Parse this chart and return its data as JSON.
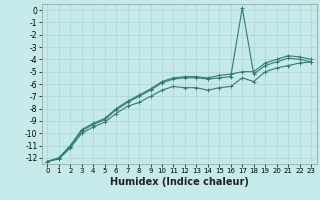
{
  "xlabel": "Humidex (Indice chaleur)",
  "ylabel": "",
  "bg_color": "#c6e9e9",
  "grid_color": "#b0d4d4",
  "line_color": "#2e7d6e",
  "x_values": [
    0,
    1,
    2,
    3,
    4,
    5,
    6,
    7,
    8,
    9,
    10,
    11,
    12,
    13,
    14,
    15,
    16,
    17,
    18,
    19,
    20,
    21,
    22,
    23
  ],
  "line1": [
    -12.3,
    -12.1,
    -11.2,
    -10.0,
    -9.5,
    -9.1,
    -8.4,
    -7.8,
    -7.5,
    -7.0,
    -6.5,
    -6.2,
    -6.3,
    -6.3,
    -6.5,
    -6.3,
    -6.2,
    -5.5,
    -5.8,
    -5.0,
    -4.7,
    -4.5,
    -4.3,
    -4.2
  ],
  "line2": [
    -12.3,
    -12.0,
    -11.1,
    -9.8,
    -9.3,
    -8.9,
    -8.1,
    -7.5,
    -7.0,
    -6.5,
    -5.9,
    -5.6,
    -5.5,
    -5.5,
    -5.6,
    -5.5,
    -5.4,
    0.2,
    -5.2,
    -4.5,
    -4.2,
    -3.9,
    -4.0,
    -4.2
  ],
  "line3": [
    -12.3,
    -12.0,
    -11.0,
    -9.7,
    -9.2,
    -8.8,
    -8.0,
    -7.4,
    -6.9,
    -6.4,
    -5.8,
    -5.5,
    -5.4,
    -5.4,
    -5.5,
    -5.3,
    -5.2,
    -5.0,
    -5.0,
    -4.3,
    -4.0,
    -3.7,
    -3.8,
    -4.0
  ],
  "ylim_min": -12.5,
  "ylim_max": 0.5,
  "xlim_min": -0.5,
  "xlim_max": 23.5,
  "yticks": [
    0,
    -1,
    -2,
    -3,
    -4,
    -5,
    -6,
    -7,
    -8,
    -9,
    -10,
    -11,
    -12
  ],
  "xticks": [
    0,
    1,
    2,
    3,
    4,
    5,
    6,
    7,
    8,
    9,
    10,
    11,
    12,
    13,
    14,
    15,
    16,
    17,
    18,
    19,
    20,
    21,
    22,
    23
  ],
  "marker": "+",
  "markersize": 3.5,
  "linewidth": 0.8,
  "fontsize_ytick": 5.5,
  "fontsize_xtick": 5.0,
  "fontsize_xlabel": 7.0
}
